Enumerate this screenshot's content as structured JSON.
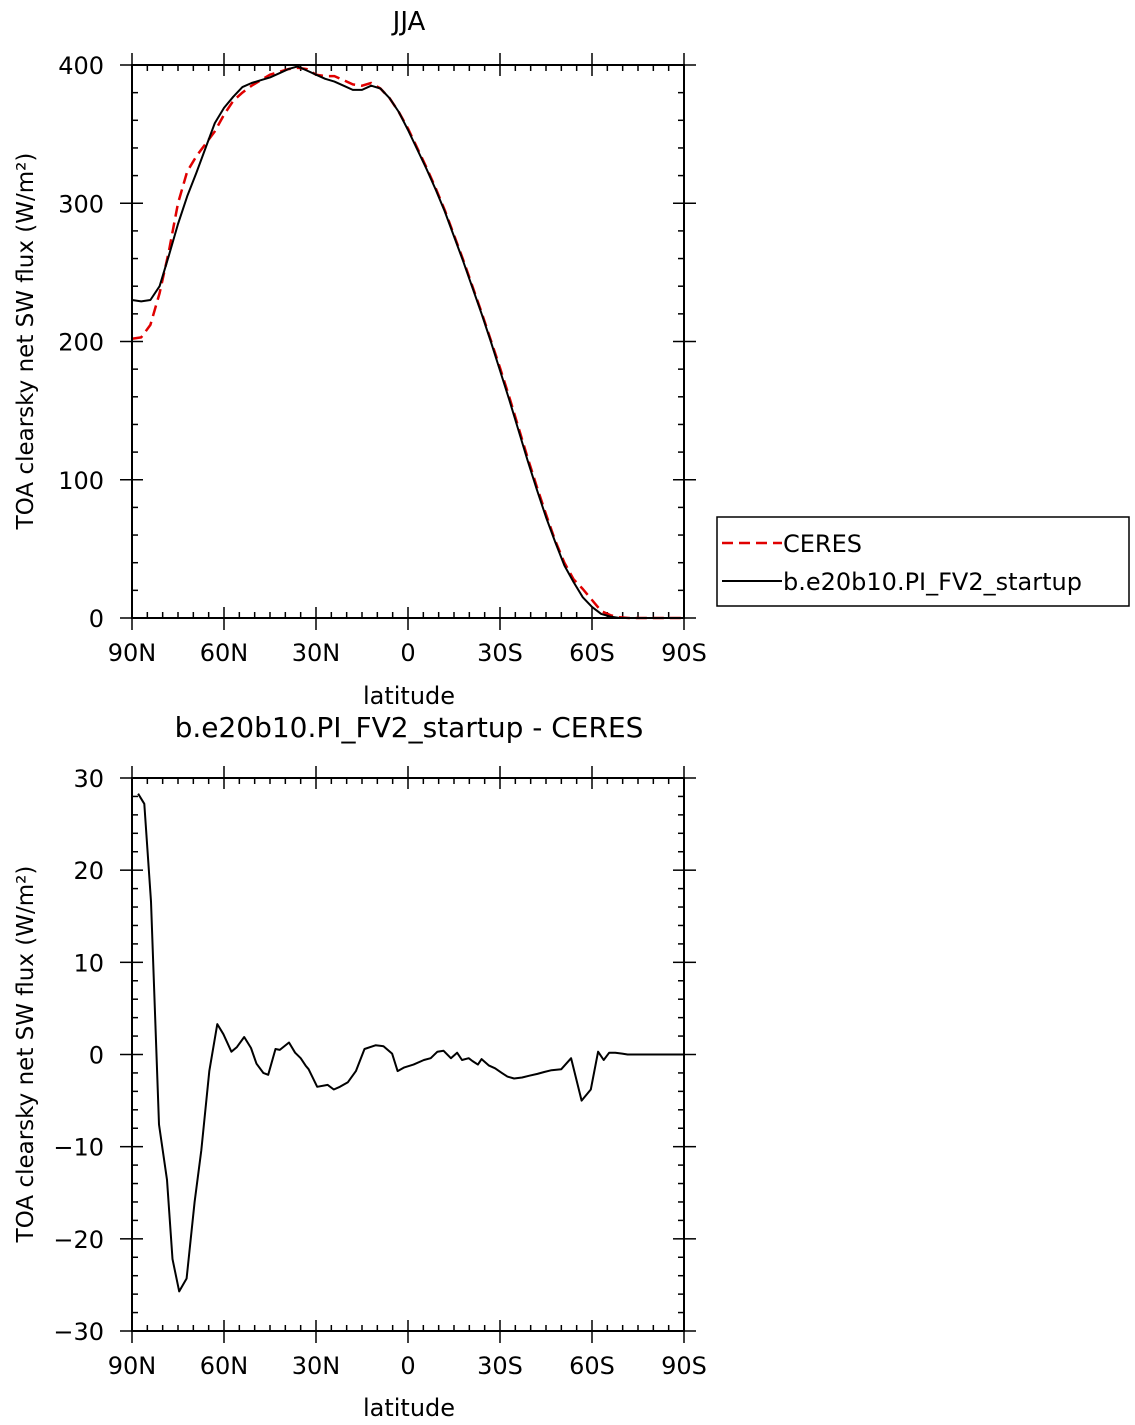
{
  "chart_data": [
    {
      "type": "line",
      "title": "JJA",
      "xlabel": "latitude",
      "ylabel": "TOA clearsky net SW flux (W/m²)",
      "xlim": [
        90,
        -90
      ],
      "ylim": [
        0,
        400
      ],
      "x_ticks": [
        90,
        60,
        30,
        0,
        -30,
        -60,
        -90
      ],
      "x_tick_labels": [
        "90N",
        "60N",
        "30N",
        "0",
        "30S",
        "60S",
        "90S"
      ],
      "y_ticks": [
        0,
        100,
        200,
        300,
        400
      ],
      "y_tick_labels": [
        "0",
        "100",
        "200",
        "300",
        "400"
      ],
      "legend": "right",
      "series": [
        {
          "name": "CERES",
          "color": "#e00000",
          "style": "dashed",
          "x": [
            90,
            87,
            84,
            81,
            78,
            75,
            72,
            69,
            66,
            63,
            60,
            57,
            54,
            51,
            48,
            45,
            42,
            39,
            36,
            33,
            30,
            27,
            24,
            21,
            18,
            15,
            12,
            9,
            6,
            3,
            0,
            -3,
            -6,
            -9,
            -12,
            -15,
            -18,
            -21,
            -24,
            -27,
            -30,
            -33,
            -36,
            -39,
            -42,
            -45,
            -48,
            -51,
            -54,
            -57,
            -60,
            -63,
            -66,
            -69,
            -72,
            -75,
            -78,
            -81,
            -84,
            -87,
            -90
          ],
          "values": [
            202,
            203,
            212,
            235,
            265,
            300,
            323,
            334,
            343,
            352,
            364,
            374,
            380,
            385,
            389,
            393,
            395,
            397,
            398,
            397,
            393,
            392,
            392,
            389,
            386,
            385,
            387,
            383,
            376,
            366,
            354,
            340,
            326,
            311,
            295,
            277,
            259,
            240,
            221,
            201,
            181,
            160,
            138,
            116,
            95,
            75,
            56,
            40,
            28,
            21,
            13,
            5,
            2,
            0.5,
            0,
            0,
            0,
            0,
            0,
            0,
            0
          ]
        },
        {
          "name": "b.e20b10.PI_FV2_startup",
          "color": "#000000",
          "style": "solid",
          "x": [
            90,
            87,
            84,
            81,
            78,
            75,
            72,
            69,
            66,
            63,
            60,
            57,
            54,
            51,
            48,
            45,
            42,
            39,
            36,
            33,
            30,
            27,
            24,
            21,
            18,
            15,
            12,
            9,
            6,
            3,
            0,
            -3,
            -6,
            -9,
            -12,
            -15,
            -18,
            -21,
            -24,
            -27,
            -30,
            -33,
            -36,
            -39,
            -42,
            -45,
            -48,
            -51,
            -54,
            -57,
            -60,
            -63,
            -66,
            -69,
            -72,
            -75,
            -78,
            -81,
            -84,
            -87,
            -90
          ],
          "values": [
            230,
            229,
            230,
            240,
            262,
            285,
            305,
            322,
            340,
            358,
            369,
            377,
            384,
            387,
            389,
            391,
            394,
            397,
            399,
            396,
            393,
            390,
            388,
            385,
            382,
            382,
            385,
            383,
            376,
            366,
            353,
            339,
            325,
            310,
            294,
            276,
            258,
            239,
            220,
            200,
            179,
            158,
            136,
            114,
            93,
            73,
            55,
            38,
            26,
            15,
            8,
            3,
            1,
            0,
            0,
            0,
            0,
            0,
            0,
            0,
            0
          ]
        }
      ]
    },
    {
      "type": "line",
      "title": "b.e20b10.PI_FV2_startup - CERES",
      "xlabel": "latitude",
      "ylabel": "TOA clearsky net SW flux (W/m²)",
      "xlim": [
        90,
        -90
      ],
      "ylim": [
        -30,
        30
      ],
      "x_ticks": [
        90,
        60,
        30,
        0,
        -30,
        -60,
        -90
      ],
      "x_tick_labels": [
        "90N",
        "60N",
        "30N",
        "0",
        "30S",
        "60S",
        "90S"
      ],
      "y_ticks": [
        -30,
        -20,
        -10,
        0,
        10,
        20,
        30
      ],
      "y_tick_labels": [
        "−30",
        "−20",
        "−10",
        "0",
        "10",
        "20",
        "30"
      ],
      "series": [
        {
          "color": "#000000",
          "style": "solid",
          "x": [
            88,
            86,
            83.8,
            81.2,
            78.6,
            76.8,
            74.6,
            72.2,
            69.6,
            67.4,
            64.8,
            62.2,
            60.2,
            57.6,
            55.8,
            53.4,
            51.2,
            49.4,
            47.2,
            45.6,
            43.2,
            41.8,
            38.8,
            36.8,
            35,
            33.4,
            32.4,
            29.6,
            26.2,
            24.2,
            22.2,
            19.6,
            17,
            14.2,
            10.6,
            8,
            5.2,
            3.4,
            1.2,
            -1.8,
            -5.2,
            -7.4,
            -9.6,
            -11.6,
            -14,
            -16,
            -17.6,
            -19.8,
            -21,
            -22.8,
            -24,
            -26.4,
            -28.4,
            -30.6,
            -32.4,
            -34.6,
            -37.2,
            -39.6,
            -42.2,
            -44.4,
            -46.8,
            -50,
            -53.2,
            -56.6,
            -59.6,
            -62,
            -63.8,
            -65.6,
            -67.6,
            -69.8,
            -71.6,
            -73.2,
            -75.6,
            -78,
            -80.6,
            -83.2,
            -86,
            -89.8
          ],
          "values": [
            28.3,
            27.2,
            16.6,
            -7.6,
            -13.6,
            -22.2,
            -25.7,
            -24.3,
            -16,
            -10.4,
            -1.8,
            3.3,
            2.2,
            0.3,
            0.8,
            1.9,
            0.7,
            -1,
            -2,
            -2.2,
            0.6,
            0.5,
            1.3,
            0.2,
            -0.4,
            -1.2,
            -1.6,
            -3.5,
            -3.3,
            -3.8,
            -3.5,
            -3,
            -1.8,
            0.6,
            1,
            0.9,
            0.1,
            -1.8,
            -1.4,
            -1.1,
            -0.6,
            -0.4,
            0.3,
            0.4,
            -0.4,
            0.2,
            -0.6,
            -0.4,
            -0.7,
            -1.1,
            -0.5,
            -1.2,
            -1.5,
            -2,
            -2.4,
            -2.6,
            -2.5,
            -2.3,
            -2.1,
            -1.9,
            -1.7,
            -1.6,
            -0.4,
            -5,
            -3.8,
            0.3,
            -0.6,
            0.2,
            0.2,
            0.1,
            0,
            0,
            0,
            0,
            0,
            0,
            0,
            0
          ]
        }
      ]
    }
  ]
}
